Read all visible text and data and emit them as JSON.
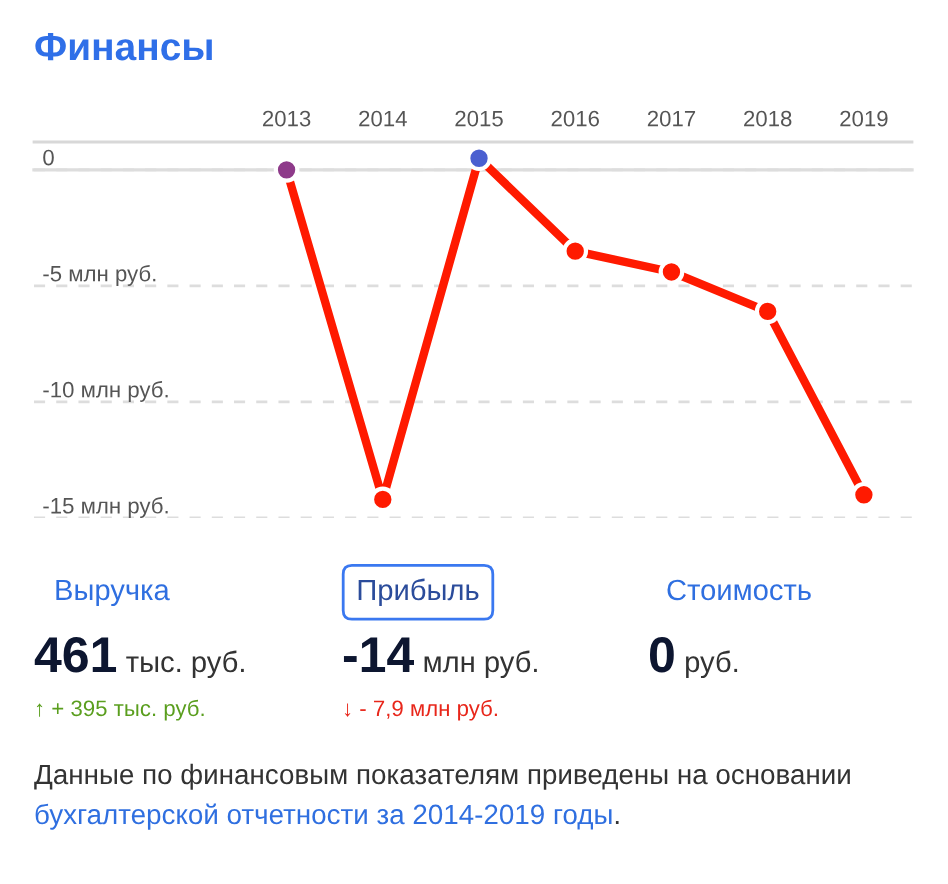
{
  "chart_data": [
    {
      "type": "line",
      "title": "Финансы",
      "categories": [
        "2013",
        "2014",
        "2015",
        "2016",
        "2017",
        "2018",
        "2019"
      ],
      "series": [
        {
          "color": "#ff1a00",
          "colors": [
            "#8e3a8a",
            "#ff1a00",
            "#4a5fd0",
            "#ff1a00",
            "#ff1a00",
            "#ff1a00",
            "#ff1a00"
          ],
          "values": [
            0,
            -14.2,
            0.5,
            -3.5,
            -4.4,
            -6.1,
            -14.0
          ]
        }
      ],
      "ylim": [
        -15,
        1.2
      ],
      "yticks": [
        0,
        {
          "value": -5,
          "label": "-5 млн руб."
        },
        {
          "value": -10,
          "label": "-10 млн руб."
        },
        {
          "value": -15,
          "label": "-15 млн руб."
        }
      ],
      "grid": "y",
      "marker": "circle",
      "line_style": "solid"
    },
    {
      "type": "other",
      "annotations": [
        "Выручка",
        "Прибыль",
        "Стоимость",
        "461",
        "тыс. руб.",
        "-14",
        "млн руб.",
        "0",
        "руб.",
        "↑ + 395 тыс. руб.",
        "↓ - 7,9 млн руб.",
        "Данные по финансовым показателям приведены на основании",
        "бухгалтерской отчетности за 2014-2019 годы",
        "."
      ]
    }
  ]
}
